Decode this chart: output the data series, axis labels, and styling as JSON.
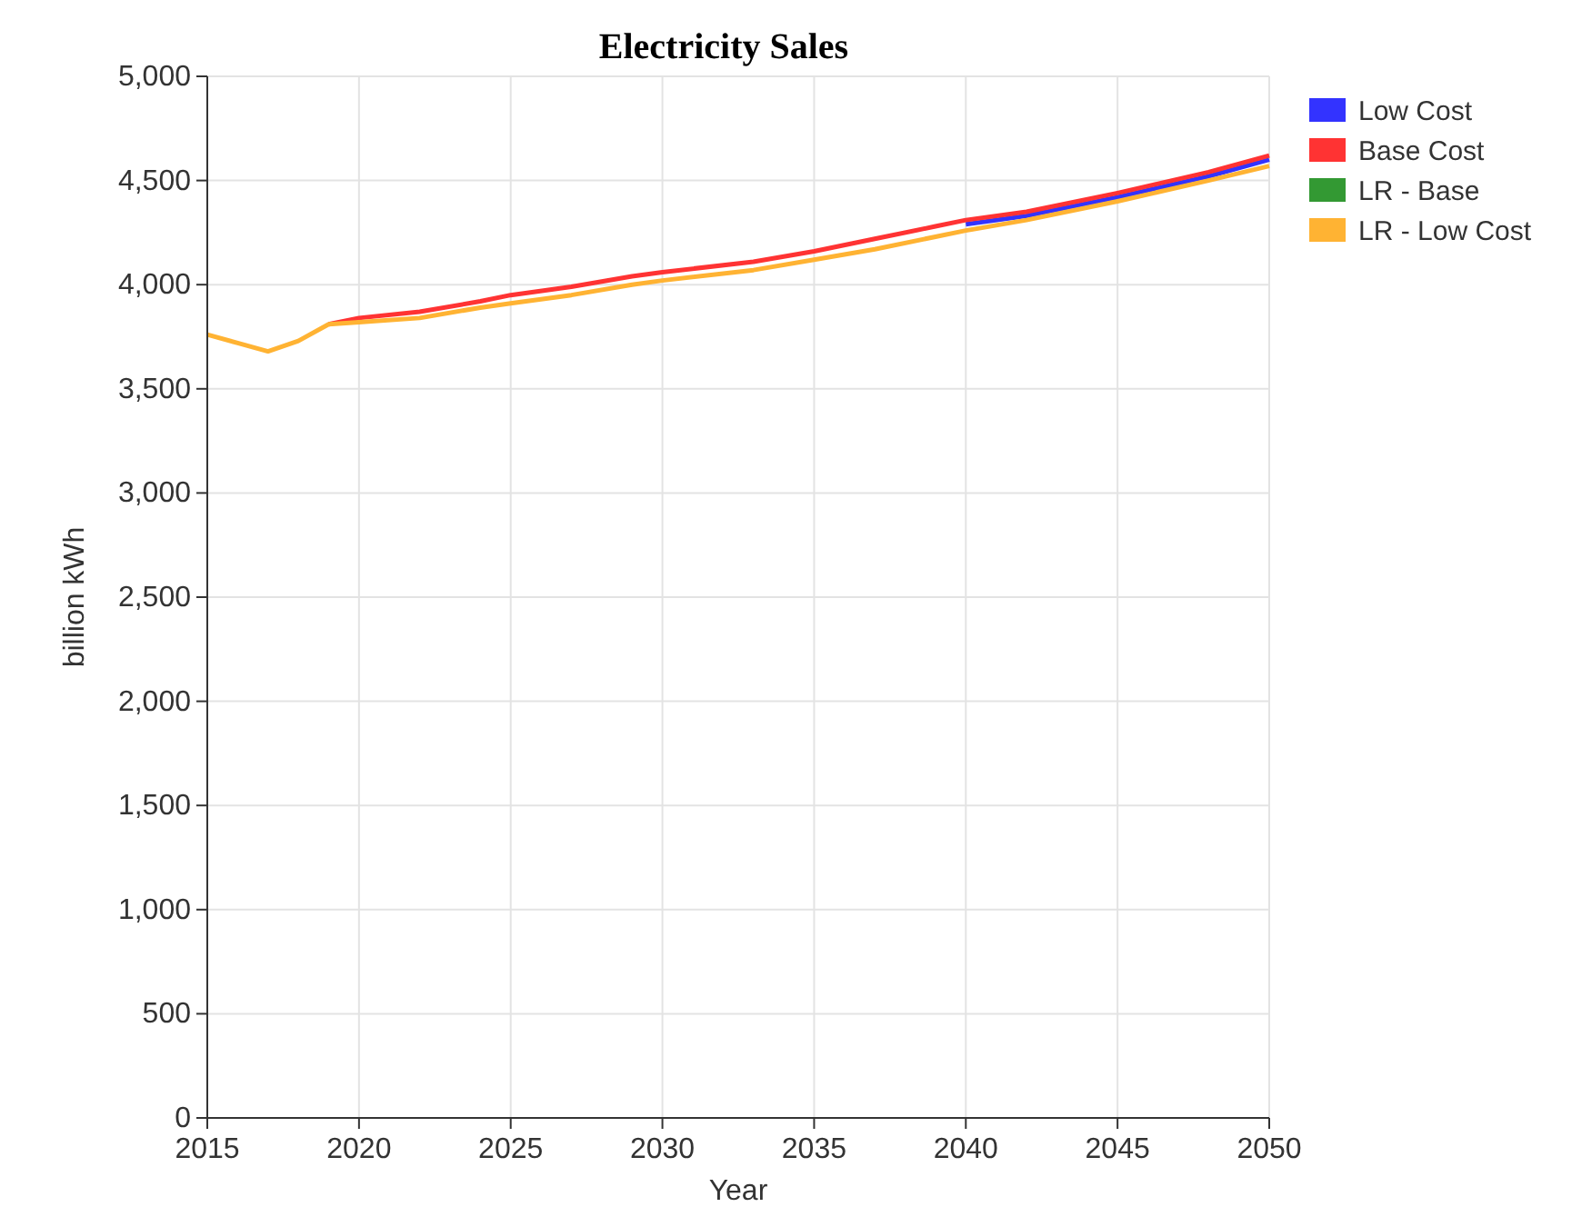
{
  "chart_data": {
    "type": "line",
    "title": "Electricity Sales",
    "xlabel": "Year",
    "ylabel": "billion kWh",
    "x": [
      2015,
      2016,
      2017,
      2018,
      2019,
      2020,
      2022,
      2024,
      2025,
      2027,
      2029,
      2030,
      2033,
      2035,
      2037,
      2039,
      2040,
      2042,
      2045,
      2048,
      2050
    ],
    "series": [
      {
        "name": "Low Cost",
        "color": "#3333ff",
        "values": [
          null,
          null,
          null,
          null,
          null,
          null,
          null,
          null,
          null,
          null,
          null,
          null,
          null,
          null,
          null,
          null,
          4290,
          4330,
          4420,
          4520,
          4600
        ]
      },
      {
        "name": "Base Cost",
        "color": "#ff3333",
        "values": [
          null,
          null,
          null,
          null,
          3810,
          3840,
          3870,
          3920,
          3950,
          3990,
          4040,
          4060,
          4110,
          4160,
          4220,
          4280,
          4310,
          4350,
          4440,
          4540,
          4620
        ]
      },
      {
        "name": "LR - Base",
        "color": "#339933",
        "values": [
          null,
          null,
          null,
          null,
          null,
          null,
          null,
          null,
          null,
          null,
          null,
          null,
          null,
          null,
          null,
          null,
          null,
          null,
          null,
          null,
          null
        ]
      },
      {
        "name": "LR - Low Cost",
        "color": "#ffb333",
        "values": [
          3760,
          3720,
          3680,
          3730,
          3810,
          3820,
          3840,
          3890,
          3910,
          3950,
          4000,
          4020,
          4070,
          4120,
          4170,
          4230,
          4260,
          4310,
          4400,
          4500,
          4570
        ]
      }
    ],
    "xlim": [
      2015,
      2050
    ],
    "xticks": [
      {
        "value": 2015,
        "label": "2015"
      },
      {
        "value": 2020,
        "label": "2020"
      },
      {
        "value": 2025,
        "label": "2025"
      },
      {
        "value": 2030,
        "label": "2030"
      },
      {
        "value": 2035,
        "label": "2035"
      },
      {
        "value": 2040,
        "label": "2040"
      },
      {
        "value": 2045,
        "label": "2045"
      },
      {
        "value": 2050,
        "label": "2050"
      }
    ],
    "ylim": [
      0,
      5000
    ],
    "yticks": [
      {
        "value": 0,
        "label": "0"
      },
      {
        "value": 500,
        "label": "500"
      },
      {
        "value": 1000,
        "label": "1,000"
      },
      {
        "value": 1500,
        "label": "1,500"
      },
      {
        "value": 2000,
        "label": "2,000"
      },
      {
        "value": 2500,
        "label": "2,500"
      },
      {
        "value": 3000,
        "label": "3,000"
      },
      {
        "value": 3500,
        "label": "3,500"
      },
      {
        "value": 4000,
        "label": "4,000"
      },
      {
        "value": 4500,
        "label": "4,500"
      },
      {
        "value": 5000,
        "label": "5,000"
      }
    ],
    "grid": true,
    "legend": "top right",
    "line_style": "solid",
    "marker": "none"
  }
}
